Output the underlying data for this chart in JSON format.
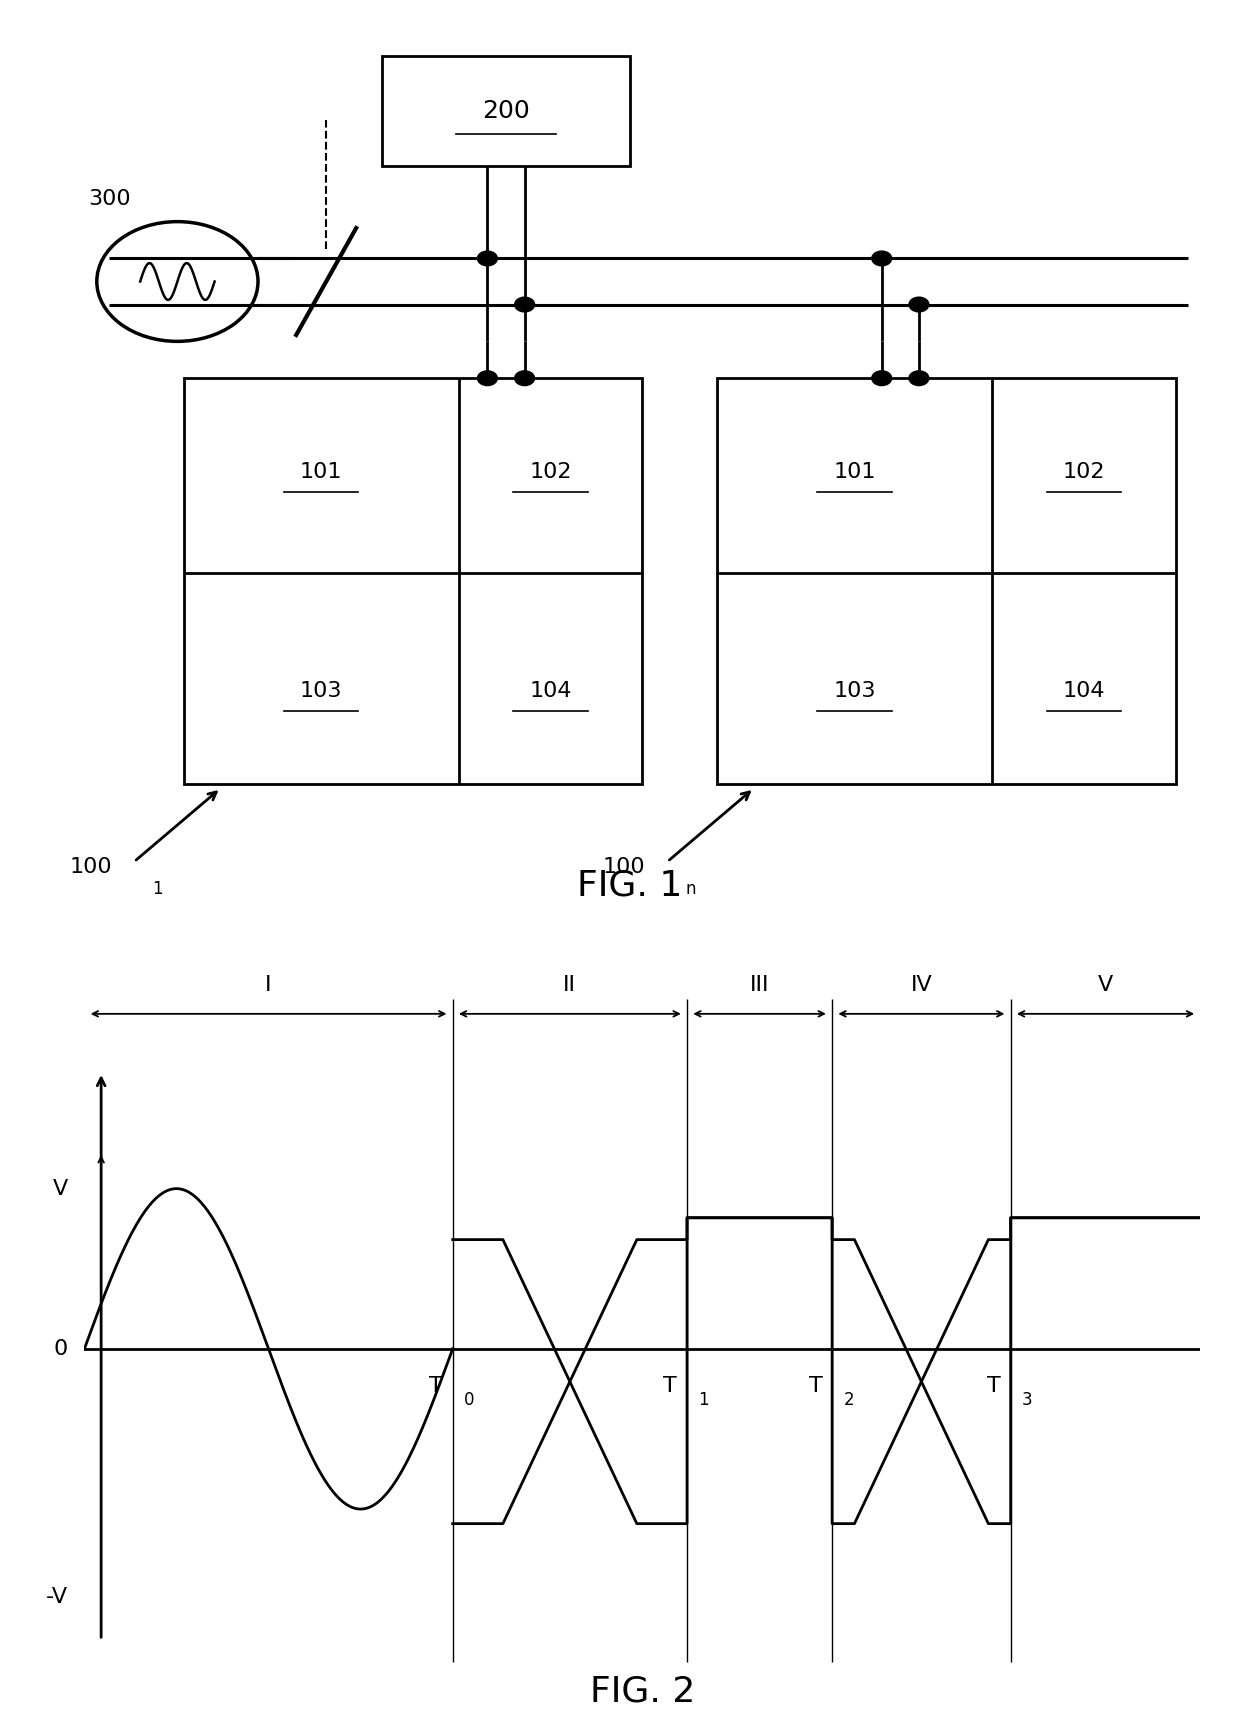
{
  "fig_width": 12.4,
  "fig_height": 17.38,
  "bg_color": "#ffffff",
  "line_color": "#000000",
  "lw": 2.0,
  "fig1_title": "FIG. 1",
  "fig2_title": "FIG. 2",
  "label_200": "200",
  "label_300": "300",
  "label_101": "101",
  "label_102": "102",
  "label_103": "103",
  "label_104": "104",
  "label_100": "100",
  "sub_1": "1",
  "sub_n": "n",
  "regions": [
    "I",
    "II",
    "III",
    "IV",
    "V"
  ],
  "t_labels": [
    "T",
    "T",
    "T",
    "T"
  ],
  "t_subs": [
    "0",
    "1",
    "2",
    "3"
  ],
  "v_label": "V",
  "neg_v_label": "-V",
  "zero_label": "0",
  "fs_label": 16,
  "fs_fig_title": 26,
  "fs_region": 16,
  "fs_axis": 16,
  "fs_small": 12
}
